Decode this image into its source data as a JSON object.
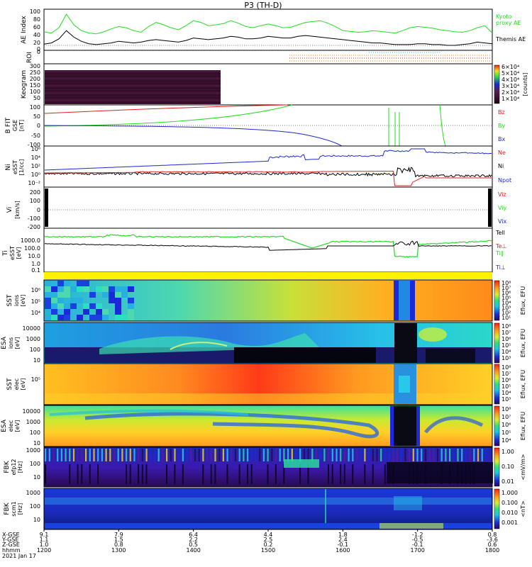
{
  "title": "P3 (TH-D)",
  "colors": {
    "black": "#000000",
    "green": "#22dd22",
    "red": "#dd2222",
    "blue": "#1a2acc",
    "orange": "#ff8800",
    "cyan": "#22ccee"
  },
  "footer": {
    "row_labels": [
      "X-GSE",
      "Y-GSE",
      "Z-GSE",
      "hhmm",
      "2021 Jan 17"
    ],
    "columns": [
      {
        "x": "9.1",
        "y": "1.1",
        "z": "1.0",
        "t": "1200"
      },
      {
        "x": "7.9",
        "y": "1.5",
        "z": "0.8",
        "t": "1300"
      },
      {
        "x": "6.4",
        "y": "2.2",
        "z": "0.5",
        "t": "1400"
      },
      {
        "x": "4.4",
        "y": "2.5",
        "z": "0.2",
        "t": "1500"
      },
      {
        "x": "1.8",
        "y": "2.4",
        "z": "-0.1",
        "t": "1600"
      },
      {
        "x": "-1.2",
        "y": "-0.5",
        "z": "-0.1",
        "t": "1700"
      },
      {
        "x": "0.8",
        "y": "-3.6",
        "z": "0.6",
        "t": "1800"
      }
    ]
  },
  "chart_data": [
    {
      "type": "line",
      "id": "ae",
      "ylabel": "AE Index",
      "ylim": [
        0,
        100
      ],
      "yticks": [
        "100",
        "80",
        "60",
        "40",
        "20",
        "0"
      ],
      "legend": [
        "Kyoto",
        "proxy AE",
        "Themis AE"
      ],
      "x_hours": [
        12.0,
        12.1,
        12.2,
        12.3,
        12.4,
        12.5,
        12.6,
        12.7,
        12.8,
        12.9,
        13.0,
        13.1,
        13.2,
        13.3,
        13.4,
        13.5,
        13.6,
        13.7,
        13.8,
        13.9,
        14.0,
        14.1,
        14.2,
        14.3,
        14.4,
        14.5,
        14.6,
        14.7,
        14.8,
        14.9,
        15.0,
        15.1,
        15.2,
        15.3,
        15.4,
        15.5,
        15.6,
        15.7,
        15.8,
        15.9,
        16.0,
        16.1,
        16.2,
        16.3,
        16.4,
        16.5,
        16.6,
        16.7,
        16.8,
        16.9,
        17.0,
        17.1,
        17.2,
        17.3,
        17.4,
        17.5,
        17.6,
        17.7,
        17.8,
        17.9,
        18.0
      ],
      "series": [
        {
          "name": "Kyoto proxy AE",
          "color": "green",
          "values": [
            45,
            42,
            55,
            88,
            62,
            48,
            42,
            40,
            45,
            52,
            58,
            55,
            48,
            44,
            58,
            68,
            62,
            55,
            50,
            60,
            72,
            68,
            60,
            62,
            65,
            72,
            66,
            58,
            55,
            60,
            64,
            60,
            55,
            56,
            62,
            68,
            70,
            72,
            66,
            58,
            48,
            46,
            44,
            45,
            48,
            46,
            44,
            42,
            48,
            55,
            58,
            56,
            54,
            50,
            48,
            45,
            44,
            48,
            55,
            60,
            42
          ]
        },
        {
          "name": "Themis AE",
          "color": "black",
          "values": [
            15,
            18,
            28,
            48,
            32,
            22,
            16,
            14,
            16,
            18,
            22,
            20,
            18,
            20,
            24,
            26,
            24,
            22,
            20,
            24,
            30,
            28,
            26,
            28,
            30,
            34,
            32,
            28,
            28,
            30,
            34,
            32,
            30,
            30,
            34,
            36,
            34,
            32,
            30,
            28,
            26,
            24,
            22,
            20,
            18,
            18,
            16,
            14,
            14,
            14,
            16,
            16,
            14,
            14,
            12,
            12,
            14,
            16,
            20,
            18,
            16
          ]
        }
      ]
    },
    {
      "type": "scatter",
      "id": "roi",
      "ylabel": "ROI",
      "ylim": [
        0,
        1
      ],
      "yticks": [
        "0"
      ]
    },
    {
      "type": "heatmap",
      "id": "keogram",
      "ylabel": "Keogram",
      "ylim": [
        0,
        300
      ],
      "yticks": [
        "300",
        "250",
        "200",
        "150",
        "100",
        "50"
      ],
      "colorbar": {
        "ticks": [
          "6×10⁴",
          "5×10⁴",
          "4×10⁴",
          "3×10⁴",
          "2×10⁴",
          "1×10⁴"
        ],
        "unit": "[counts]"
      }
    },
    {
      "type": "line",
      "id": "bfit",
      "ylabel": "B FIT",
      "ylabel2": "GSE",
      "ylabel3": "[nT]",
      "ylim": [
        -100,
        100
      ],
      "yticks": [
        "100",
        "50",
        "0",
        "-50",
        "-100"
      ],
      "legend": [
        "Bz",
        "By",
        "Bx"
      ]
    },
    {
      "type": "line",
      "id": "ni",
      "ylabel": "Ni",
      "ylabel2": "eSST",
      "ylabel3": "[1/cc]",
      "ylim": [
        -3,
        6
      ],
      "yticks": [
        "10⁶",
        "10⁴",
        "10²",
        "10⁰",
        "10⁻²"
      ],
      "legend": [
        "Ne",
        "Ni",
        "Npot"
      ]
    },
    {
      "type": "line",
      "id": "vi",
      "ylabel": "Vi",
      "ylabel2": "[km/s]",
      "ylim": [
        -300,
        300
      ],
      "yticks": [
        "200",
        "100",
        "0",
        "-100",
        "-200"
      ],
      "legend": [
        "Viz",
        "Viy",
        "Vix"
      ]
    },
    {
      "type": "line",
      "id": "ti",
      "ylabel": "Ti",
      "ylabel2": "eSST",
      "ylabel3": "[eV]",
      "ylim": [
        -1,
        3
      ],
      "yticks": [
        "1000.0",
        "100.0",
        "10.0",
        "1.0",
        "0.1"
      ],
      "legend": [
        "Tell",
        "Te⊥",
        "Ti∥",
        "Ti⊥"
      ]
    },
    {
      "type": "heatmap",
      "id": "sst_i",
      "ylabel": "SST",
      "ylabel2": "ions",
      "ylabel3": "[eV]",
      "yticks": [
        "10⁶",
        "10⁵",
        "10⁴"
      ],
      "colorbar": {
        "ticks": [
          "10⁸",
          "10⁷",
          "10⁶",
          "10⁵",
          "10⁴",
          "10³",
          "10²",
          "10¹"
        ],
        "unit": "Eflux, EFU"
      }
    },
    {
      "type": "heatmap",
      "id": "esa_i",
      "ylabel": "ESA",
      "ylabel2": "ions",
      "ylabel3": "[eV]",
      "yticks": [
        "10000",
        "1000",
        "100",
        "10"
      ],
      "colorbar": {
        "ticks": [
          "10⁸",
          "10⁷",
          "10⁶",
          "10⁵",
          "10⁴",
          "10³"
        ],
        "unit": "Eflux, EFU"
      }
    },
    {
      "type": "heatmap",
      "id": "sst_e",
      "ylabel": "SST",
      "ylabel2": "elec",
      "ylabel3": "[eV]",
      "yticks": [
        "10⁵"
      ],
      "colorbar": {
        "ticks": [
          "10⁸",
          "10⁷",
          "10⁶",
          "10⁵",
          "10⁴",
          "10³"
        ],
        "unit": "Eflux, EFU"
      }
    },
    {
      "type": "heatmap",
      "id": "esa_e",
      "ylabel": "ESA",
      "ylabel2": "elec",
      "ylabel3": "[eV]",
      "yticks": [
        "10000",
        "1000",
        "100",
        "10"
      ],
      "colorbar": {
        "ticks": [
          "10⁸",
          "10⁷",
          "10⁶",
          "10⁵",
          "10⁴"
        ],
        "unit": "Eflux, EFU"
      }
    },
    {
      "type": "heatmap",
      "id": "fbk_e",
      "ylabel": "FBK",
      "ylabel2": "efp12",
      "ylabel3": "[Hz]",
      "yticks": [
        "1000",
        "100",
        "10"
      ],
      "colorbar": {
        "ticks": [
          "1.00",
          "0.10",
          "0.01"
        ],
        "unit": "<mV/m>"
      }
    },
    {
      "type": "heatmap",
      "id": "fbk_b",
      "ylabel": "FBK",
      "ylabel2": "scm1",
      "ylabel3": "[Hz]",
      "yticks": [
        "1000",
        "100",
        "10"
      ],
      "colorbar": {
        "ticks": [
          "1.000",
          "0.100",
          "0.010",
          "0.001"
        ],
        "unit": "<nT>"
      }
    }
  ]
}
